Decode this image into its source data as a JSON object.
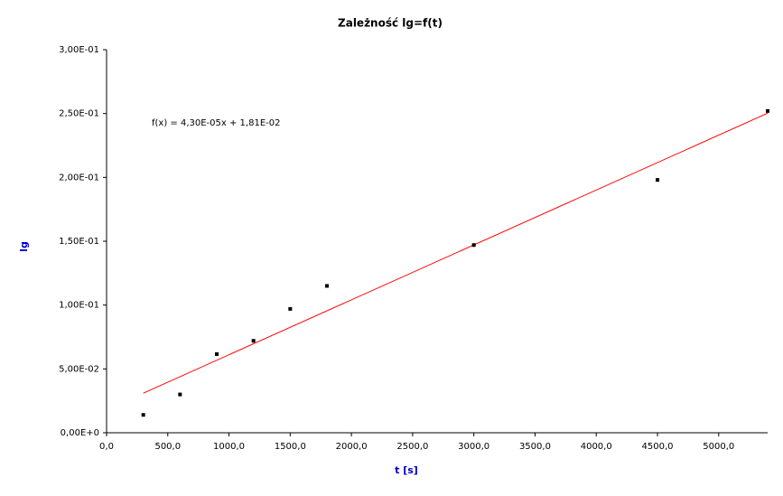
{
  "chart_data": {
    "type": "scatter",
    "title": "Zależność lg=f(t)",
    "x_label": "t [s]",
    "y_label": "lg",
    "x": [
      300,
      600,
      900,
      1200,
      1500,
      1800,
      3000,
      4500,
      5400
    ],
    "values": [
      0.014,
      0.03,
      0.0616,
      0.072,
      0.097,
      0.115,
      0.147,
      0.198,
      0.252
    ],
    "color": "#000000",
    "trendline": {
      "label": "f(x) = 4,30E-05x + 1,81E-02",
      "slope": 4.3e-05,
      "intercept": 0.0181,
      "color": "#ff0000"
    },
    "xlim": [
      0,
      5400
    ],
    "xticks": [
      {
        "value": 0,
        "label": "0,0"
      },
      {
        "value": 500,
        "label": "500,0"
      },
      {
        "value": 1000,
        "label": "1000,0"
      },
      {
        "value": 1500,
        "label": "1500,0"
      },
      {
        "value": 2000,
        "label": "2000,0"
      },
      {
        "value": 2500,
        "label": "2500,0"
      },
      {
        "value": 3000,
        "label": "3000,0"
      },
      {
        "value": 3500,
        "label": "3500,0"
      },
      {
        "value": 4000,
        "label": "4000,0"
      },
      {
        "value": 4500,
        "label": "4500,0"
      },
      {
        "value": 5000,
        "label": "5000,0"
      }
    ],
    "ylim": [
      0,
      0.3
    ],
    "yticks": [
      {
        "value": 0,
        "label": "0,00E+0"
      },
      {
        "value": 0.05,
        "label": "5,00E-02"
      },
      {
        "value": 0.1,
        "label": "1,00E-01"
      },
      {
        "value": 0.15,
        "label": "1,50E-01"
      },
      {
        "value": 0.2,
        "label": "2,00E-01"
      },
      {
        "value": 0.25,
        "label": "2,50E-01"
      },
      {
        "value": 0.3,
        "label": "3,00E-01"
      }
    ],
    "grid": false
  }
}
